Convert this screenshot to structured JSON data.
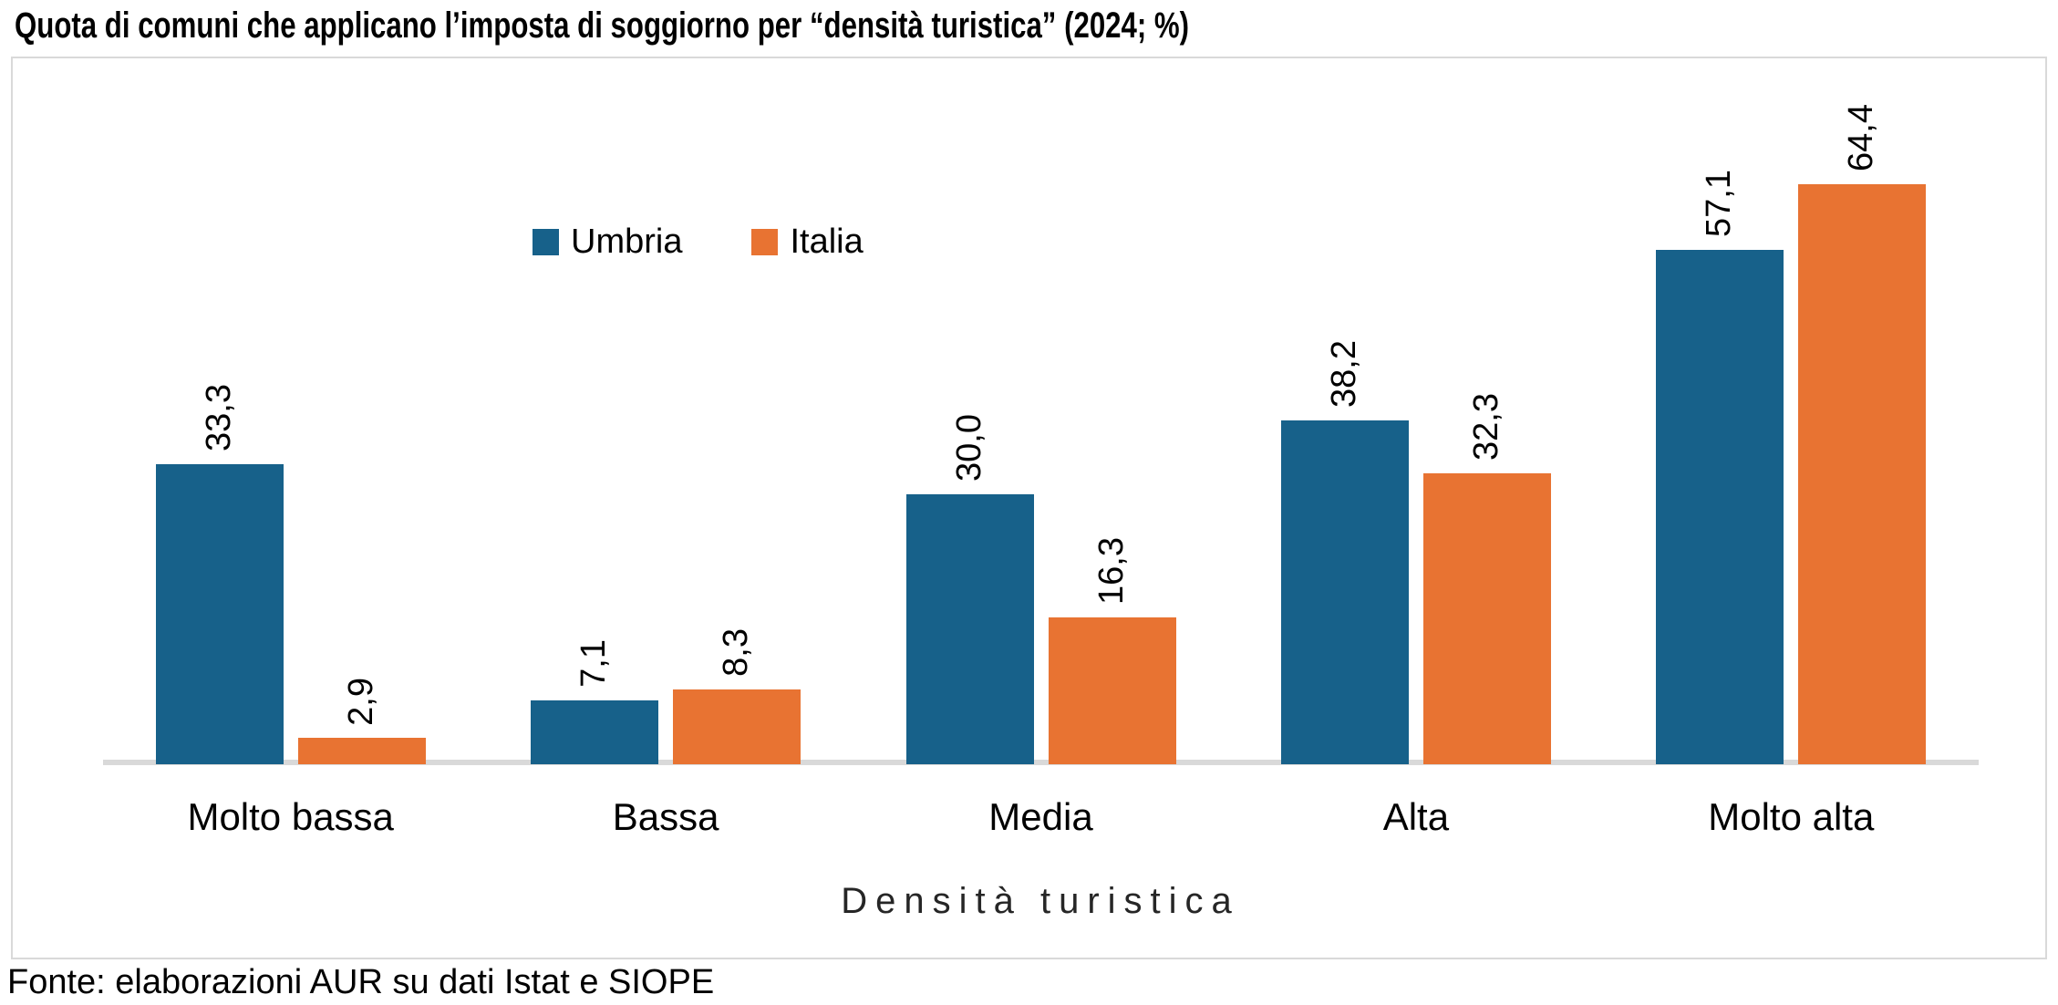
{
  "title": "Quota di comuni che applicano l’imposta di soggiorno per “densità turistica” (2024; %)",
  "source": "Fonte: elaborazioni AUR su dati Istat e SIOPE",
  "colors": {
    "umbria": "#17618A",
    "italia": "#E87332",
    "axis_line": "#D9D9D9",
    "chart_border": "#D9D9D9",
    "text": "#000000"
  },
  "legend": {
    "items": [
      {
        "label": "Umbria",
        "color": "#17618A"
      },
      {
        "label": "Italia",
        "color": "#E87332"
      }
    ]
  },
  "chart_data": {
    "type": "bar",
    "title": "Quota di comuni che applicano l’imposta di soggiorno per “densità turistica” (2024; %)",
    "categories": [
      "Molto bassa",
      "Bassa",
      "Media",
      "Alta",
      "Molto alta"
    ],
    "series": [
      {
        "name": "Umbria",
        "color": "#17618A",
        "values": [
          33.3,
          7.1,
          30.0,
          38.2,
          57.1
        ],
        "value_labels": [
          "33,3",
          "7,1",
          "30,0",
          "38,2",
          "57,1"
        ]
      },
      {
        "name": "Italia",
        "color": "#E87332",
        "values": [
          2.9,
          8.3,
          16.3,
          32.3,
          64.4
        ],
        "value_labels": [
          "2,9",
          "8,3",
          "16,3",
          "32,3",
          "64,4"
        ]
      }
    ],
    "xlabel": "Densità turistica",
    "ylabel": "",
    "ylim": [
      0,
      70
    ],
    "grid": false,
    "y_axis_visible": false,
    "legend_position": "top-center",
    "data_labels": "rotated-90-above-bars",
    "decimal_separator": ","
  }
}
